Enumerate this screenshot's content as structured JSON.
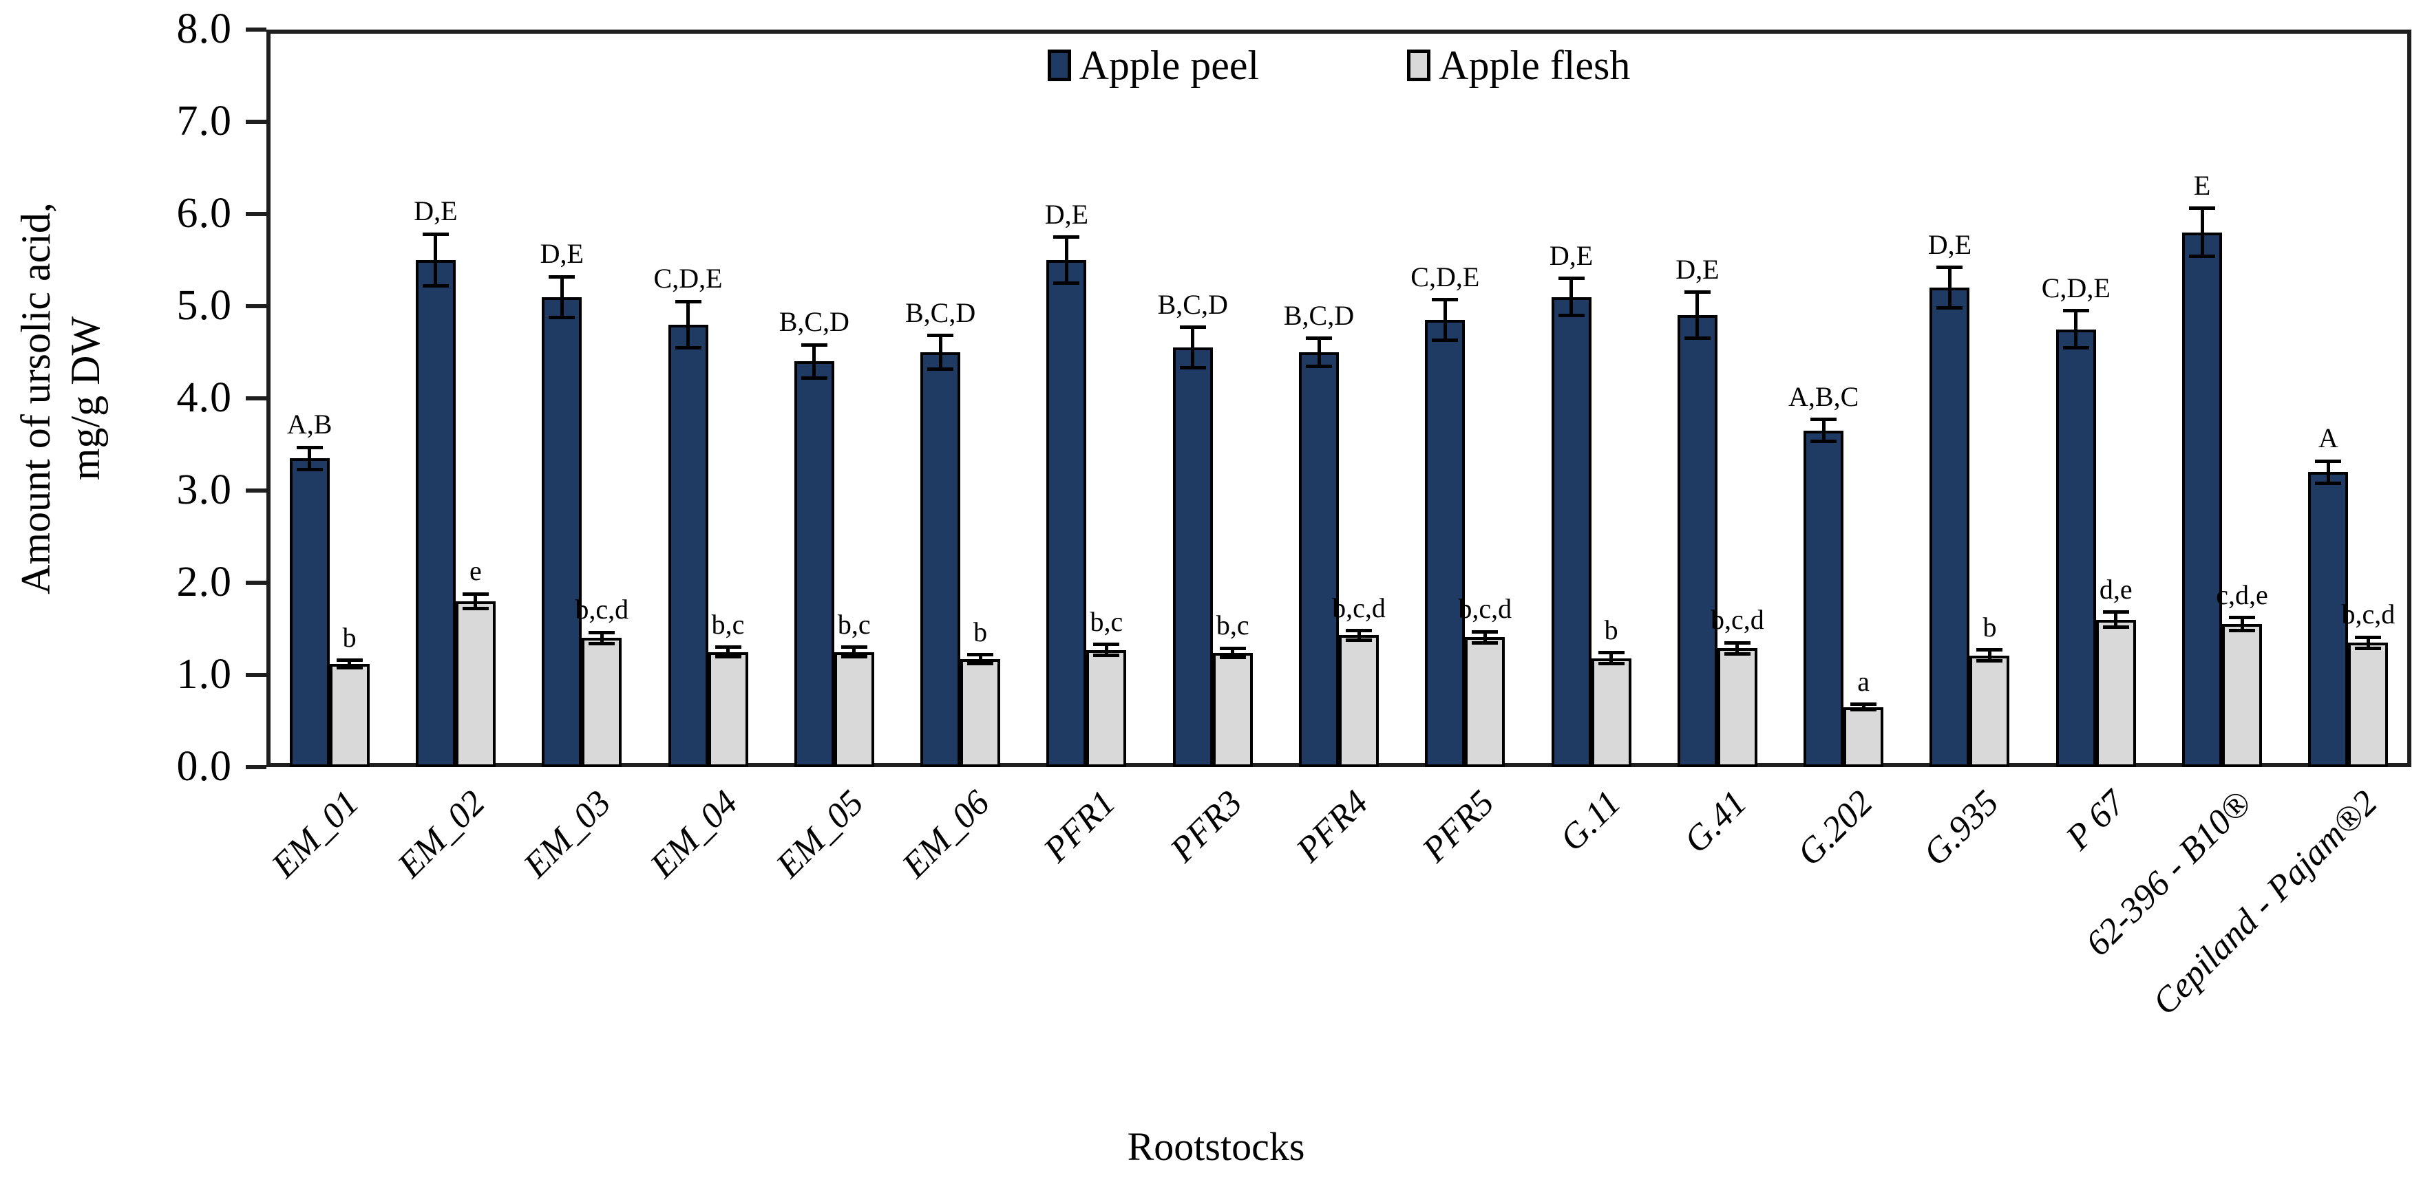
{
  "figure": {
    "x_axis_title": "Rootstocks",
    "y_axis_title_line1": "Amount of ursolic acid,",
    "y_axis_title_line2": "mg/g DW",
    "frame_color": "#1f1f1f",
    "background_color": "#ffffff"
  },
  "chart_data": {
    "type": "bar",
    "title": "",
    "xlabel": "Rootstocks",
    "ylabel": "Amount of ursolic acid, mg/g DW",
    "ylim": [
      0,
      8
    ],
    "ytick_step": 1.0,
    "ytick_format_decimals": 1,
    "grid": false,
    "legend_position": "top-center-inside",
    "error_bars": true,
    "categories": [
      "EM_01",
      "EM_02",
      "EM_03",
      "EM_04",
      "EM_05",
      "EM_06",
      "PFR1",
      "PFR3",
      "PFR4",
      "PFR5",
      "G.11",
      "G.41",
      "G.202",
      "G.935",
      "P 67",
      "62-396 - B10®",
      "Cepiland - Pajam®2"
    ],
    "series": [
      {
        "name": "Apple peel",
        "color": "#1f3a63",
        "values": [
          3.35,
          5.5,
          5.1,
          4.8,
          4.4,
          4.5,
          5.5,
          4.55,
          4.5,
          4.85,
          5.1,
          4.9,
          3.65,
          5.2,
          4.75,
          5.8,
          3.2
        ],
        "errors": [
          0.12,
          0.28,
          0.22,
          0.25,
          0.18,
          0.18,
          0.25,
          0.22,
          0.15,
          0.22,
          0.2,
          0.25,
          0.12,
          0.22,
          0.2,
          0.26,
          0.12
        ],
        "letters": [
          "A,B",
          "D,E",
          "D,E",
          "C,D,E",
          "B,C,D",
          "B,C,D",
          "D,E",
          "B,C,D",
          "B,C,D",
          "C,D,E",
          "D,E",
          "D,E",
          "A,B,C",
          "D,E",
          "C,D,E",
          "E",
          "A"
        ]
      },
      {
        "name": "Apple flesh",
        "color": "#d9d9d9",
        "values": [
          1.12,
          1.8,
          1.4,
          1.25,
          1.25,
          1.17,
          1.27,
          1.24,
          1.43,
          1.41,
          1.18,
          1.29,
          0.65,
          1.21,
          1.6,
          1.55,
          1.35
        ],
        "errors": [
          0.04,
          0.08,
          0.06,
          0.05,
          0.05,
          0.05,
          0.06,
          0.05,
          0.05,
          0.06,
          0.06,
          0.06,
          0.03,
          0.06,
          0.08,
          0.07,
          0.06
        ],
        "letters": [
          "b",
          "e",
          "b,c,d",
          "b,c",
          "b,c",
          "b",
          "b,c",
          "b,c",
          "b,c,d",
          "b,c,d",
          "b",
          "b,c,d",
          "a",
          "b",
          "d,e",
          "c,d,e",
          "b,c,d"
        ]
      }
    ]
  }
}
